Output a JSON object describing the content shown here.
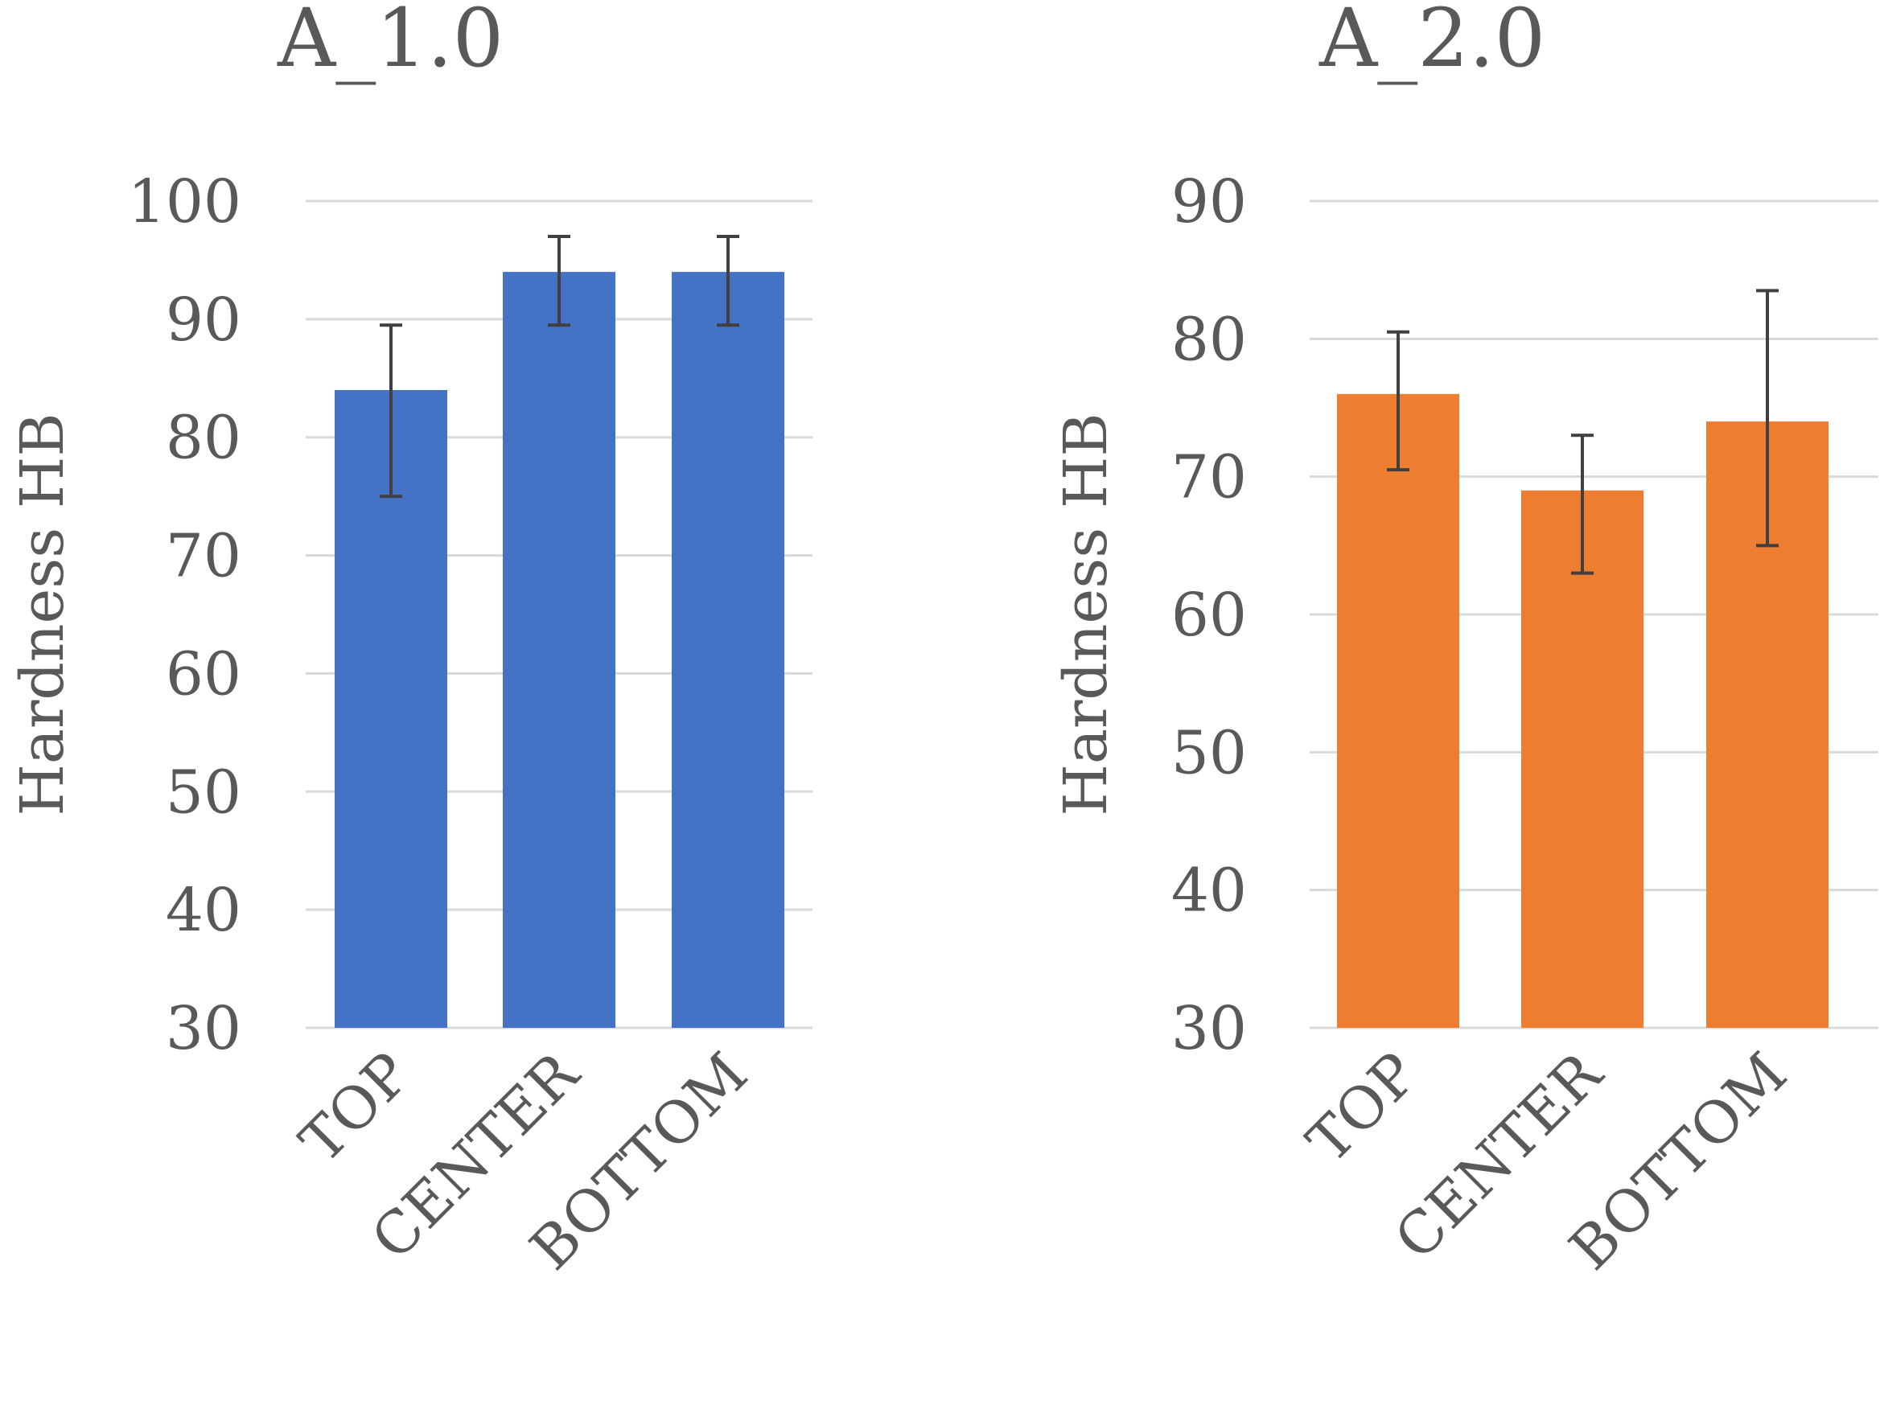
{
  "chart_data": [
    {
      "type": "bar",
      "title": "A_1.0",
      "ylabel": "Hardness HB",
      "xlabel": "",
      "categories": [
        "TOP",
        "CENTER",
        "BOTTOM"
      ],
      "values": [
        84,
        94,
        94
      ],
      "error_low": [
        75,
        89.5,
        89.5
      ],
      "error_high": [
        89.5,
        97,
        97
      ],
      "ylim": [
        30,
        100
      ],
      "yticks": [
        30,
        40,
        50,
        60,
        70,
        80,
        90,
        100
      ],
      "color": "#4472C4",
      "grid": true
    },
    {
      "type": "bar",
      "title": "A_2.0",
      "ylabel": "Hardness HB",
      "xlabel": "",
      "categories": [
        "TOP",
        "CENTER",
        "BOTTOM"
      ],
      "values": [
        76,
        69,
        74
      ],
      "error_low": [
        70.5,
        63,
        65
      ],
      "error_high": [
        80.5,
        73,
        83.5
      ],
      "ylim": [
        30,
        90
      ],
      "yticks": [
        30,
        40,
        50,
        60,
        70,
        80,
        90
      ],
      "color": "#ED7D31",
      "grid": true
    }
  ]
}
